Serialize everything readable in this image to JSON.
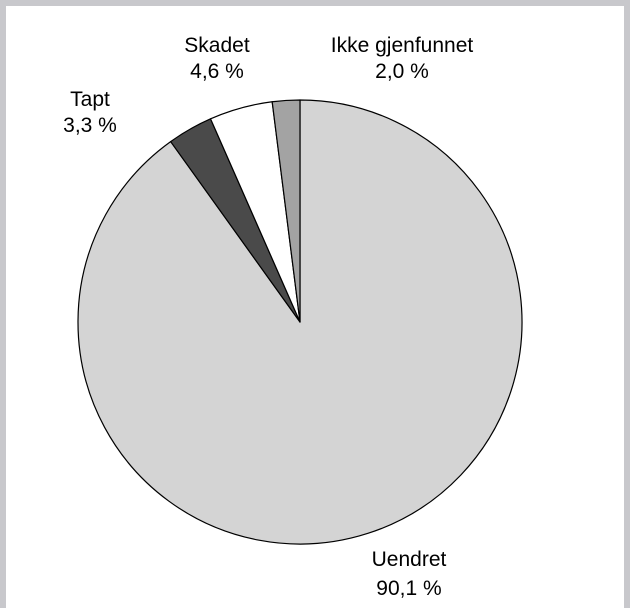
{
  "chart_data": {
    "type": "pie",
    "categories": [
      "Uendret",
      "Tapt",
      "Skadet",
      "Ikke gjenfunnet"
    ],
    "values": [
      90.1,
      3.3,
      4.6,
      2.0
    ],
    "value_labels": [
      "90,1 %",
      "3,3 %",
      "4,6 %",
      "2,0 %"
    ],
    "colors": [
      "#d4d4d4",
      "#4a4a4a",
      "#ffffff",
      "#a3a3a3"
    ],
    "title": "",
    "start_direction": "top",
    "direction": "clockwise"
  }
}
